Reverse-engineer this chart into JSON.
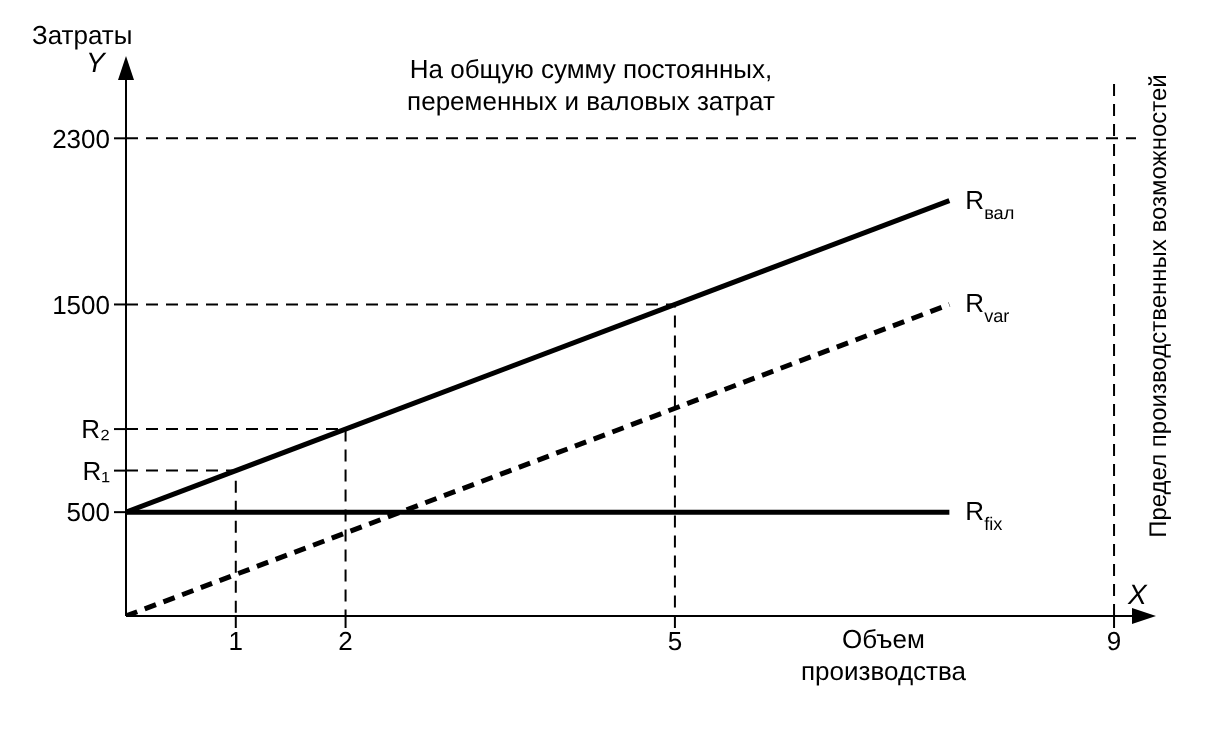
{
  "chart_data": {
    "type": "line",
    "ylabel": "Затраты",
    "xlabel": "Объем производства",
    "annotations": [
      "Y",
      "X"
    ],
    "x": [
      0,
      7.5
    ],
    "xlim": [
      0,
      9.2
    ],
    "xticks": [
      1,
      2,
      5,
      9
    ],
    "ylim": [
      0,
      2600
    ],
    "yticks": [
      500,
      {
        "value": 700,
        "label": "R₁"
      },
      {
        "value": 900,
        "label": "R₂"
      },
      1500,
      2300
    ],
    "grid": false,
    "legend": false,
    "marker": "none",
    "series": [
      {
        "name": "R$_{вал}$",
        "color": "#000000",
        "values": [
          500,
          2000
        ],
        "line_style": "solid"
      },
      {
        "name": "R$_{var}$",
        "color": "#000000",
        "values": [
          0,
          1500
        ],
        "line_style": "dashed"
      },
      {
        "name": "R$_{fix}$",
        "color": "#000000",
        "values": [
          500,
          500
        ],
        "line_style": "solid"
      },
      {
        "type": "line",
        "color": "#000000",
        "x": [
          0,
          1,
          1
        ],
        "values": [
          700,
          700,
          0
        ],
        "line_style": "dashed"
      },
      {
        "type": "line",
        "color": "#000000",
        "x": [
          0,
          2,
          2
        ],
        "values": [
          900,
          900,
          0
        ],
        "line_style": "dashed"
      },
      {
        "type": "line",
        "color": "#000000",
        "x": [
          0,
          5,
          5
        ],
        "values": [
          1500,
          1500,
          0
        ],
        "line_style": "dashed"
      }
    ],
    "ref_lines": [
      {
        "axis": "y",
        "value": 2300,
        "label": "На общую сумму постоянных, переменных и валовых затрат",
        "line_style": "dashed",
        "color": "#000000"
      },
      {
        "axis": "x",
        "value": 9,
        "label": "Предел производственных возможностей",
        "line_style": "dashed",
        "color": "#000000"
      }
    ]
  }
}
